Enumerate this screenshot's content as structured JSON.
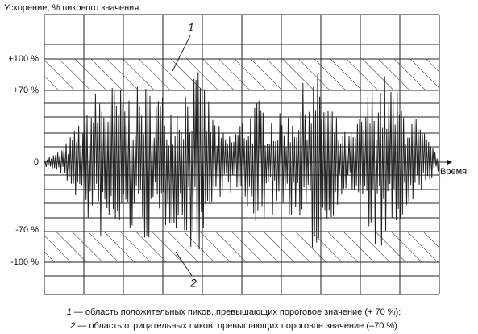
{
  "axis_title": "Ускорение, % пикового значения",
  "y_labels": [
    "+100 %",
    "+70 %",
    "0",
    "-70 %",
    "-100 %"
  ],
  "x_label": "Время",
  "callouts": [
    "1",
    "2"
  ],
  "legend": [
    {
      "number": "1",
      "text": " — область положительных пиков, превышающих пороговое значение (+ 70 %);"
    },
    {
      "number": "2",
      "text": " — область отрицательных пиков, превышающих пороговое значение (–70 %)"
    }
  ]
}
